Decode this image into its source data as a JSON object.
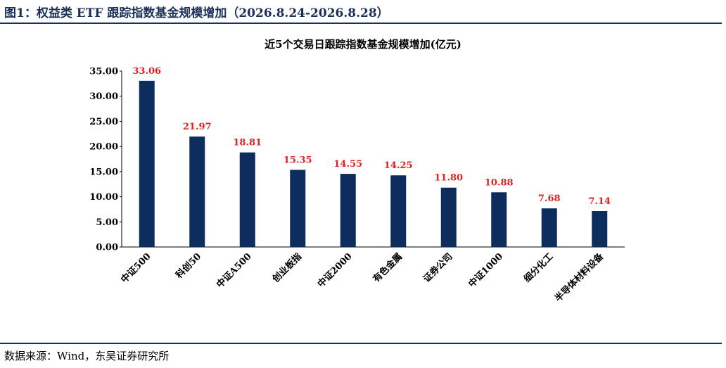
{
  "header": {
    "figure_title": "图1：权益类 ETF 跟踪指数基金规模增加（2026.8.24-2026.8.28）"
  },
  "footer": {
    "source": "数据来源：Wind，东吴证券研究所"
  },
  "chart_data": {
    "type": "bar",
    "title": "近5个交易日跟踪指数基金规模增加(亿元)",
    "xlabel": "",
    "ylabel": "",
    "categories": [
      "中证500",
      "科创50",
      "中证A500",
      "创业板指",
      "中证2000",
      "有色金属",
      "证券公司",
      "中证1000",
      "细分化工",
      "半导体材料设备"
    ],
    "values": [
      33.06,
      21.97,
      18.81,
      15.35,
      14.55,
      14.25,
      11.8,
      10.88,
      7.68,
      7.14
    ],
    "value_labels": [
      "33.06",
      "21.97",
      "18.81",
      "15.35",
      "14.55",
      "14.25",
      "11.80",
      "10.88",
      "7.68",
      "7.14"
    ],
    "ylim": [
      0,
      35
    ],
    "yticks": [
      "0.00",
      "5.00",
      "10.00",
      "15.00",
      "20.00",
      "25.00",
      "30.00",
      "35.00"
    ],
    "grid": false,
    "legend": "none",
    "colors": {
      "bar": "#0d2d5e",
      "data_label": "#e02020"
    }
  }
}
